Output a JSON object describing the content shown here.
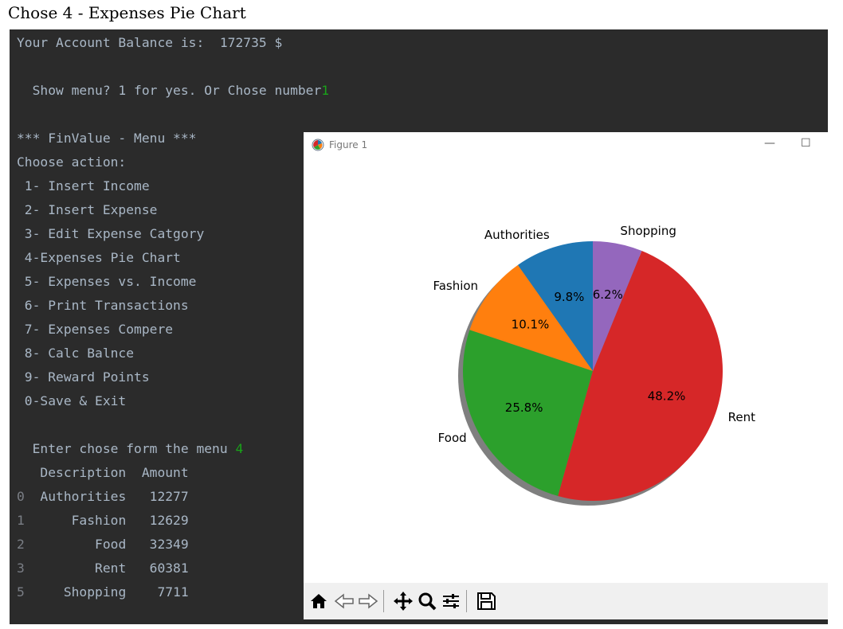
{
  "caption": "Chose 4 - Expenses Pie Chart",
  "console": {
    "balance_line": "Your Account Balance is:  172735 $",
    "menu_prompt": "  Show menu? 1 for yes. Or Chose number",
    "menu_prompt_input": "1",
    "menu_title": "*** FinValue - Menu ***",
    "choose_action": "Choose action:",
    "menu_items": [
      " 1- Insert Income",
      " 2- Insert Expense",
      " 3- Edit Expense Catgory",
      " 4-Expenses Pie Chart",
      " 5- Expenses vs. Income",
      " 6- Print Transactions",
      " 7- Expenses Compere",
      " 8- Calc Balnce",
      " 9- Reward Points",
      " 0-Save & Exit"
    ],
    "enter_prompt": "  Enter chose form the menu",
    "enter_input": "4",
    "table_header": "   Description  Amount",
    "table_rows": [
      {
        "index": "0",
        "rest": "  Authorities   12277"
      },
      {
        "index": "1",
        "rest": "      Fashion   12629"
      },
      {
        "index": "2",
        "rest": "         Food   32349"
      },
      {
        "index": "3",
        "rest": "         Rent   60381"
      },
      {
        "index": "5",
        "rest": "     Shopping    7711"
      }
    ]
  },
  "figure_window": {
    "title": "Figure 1",
    "minimize_glyph": "—",
    "maximize_glyph": "☐"
  },
  "toolbar_icons": [
    "home-icon",
    "back-arrow-icon",
    "forward-arrow-icon",
    "pan-icon",
    "zoom-icon",
    "configure-subplots-icon",
    "save-icon"
  ],
  "colors": {
    "Authorities": "#1f77b4",
    "Fashion": "#ff7f0e",
    "Food": "#2ca02c",
    "Rent": "#d62728",
    "Shopping": "#9467bd"
  },
  "chart_data": {
    "type": "pie",
    "title": "",
    "labels": [
      "Authorities",
      "Fashion",
      "Food",
      "Rent",
      "Shopping"
    ],
    "values": [
      12277,
      12629,
      32349,
      60381,
      7711
    ],
    "percent_labels": [
      "9.8%",
      "10.1%",
      "25.8%",
      "48.2%",
      "6.2%"
    ],
    "start_angle_deg": 90,
    "direction": "counterclockwise",
    "shadow": true
  }
}
